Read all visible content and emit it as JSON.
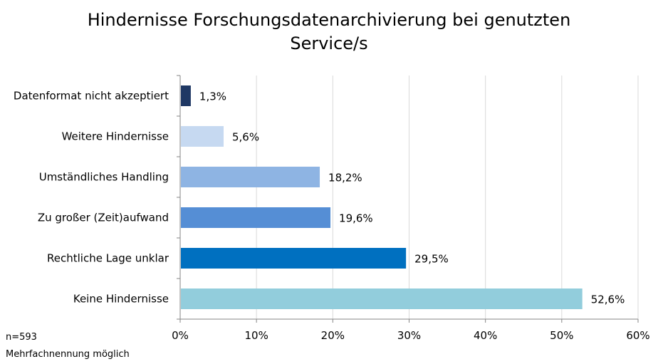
{
  "chart_data": {
    "type": "bar",
    "orientation": "horizontal",
    "title_lines": [
      "Hindernisse Forschungsdatenarchivierung bei genutzten",
      "Service/s"
    ],
    "categories": [
      "Datenformat nicht akzeptiert",
      "Weitere Hindernisse",
      "Umständliches Handling",
      "Zu großer (Zeit)aufwand",
      "Rechtliche Lage unklar",
      "Keine Hindernisse"
    ],
    "values": [
      1.3,
      5.6,
      18.2,
      19.6,
      29.5,
      52.6
    ],
    "value_labels": [
      "1,3%",
      "5,6%",
      "18,2%",
      "19,6%",
      "29,5%",
      "52,6%"
    ],
    "bar_colors": [
      "#1f3864",
      "#c6d9f1",
      "#8eb4e3",
      "#558ed5",
      "#0070c0",
      "#92cddc"
    ],
    "xlim": [
      0,
      60
    ],
    "xticks": [
      0,
      10,
      20,
      30,
      40,
      50,
      60
    ],
    "xtick_labels": [
      "0%",
      "10%",
      "20%",
      "30%",
      "40%",
      "50%",
      "60%"
    ],
    "grid": true,
    "xlabel": "",
    "ylabel": ""
  },
  "notes": {
    "sample_size": "n=593",
    "multiple": "Mehrfachnennung möglich"
  }
}
